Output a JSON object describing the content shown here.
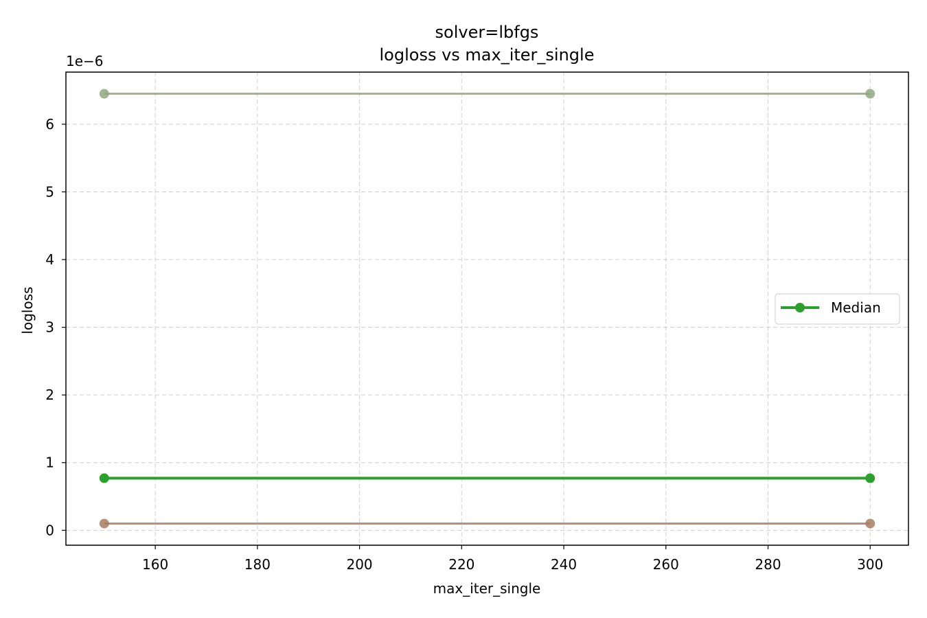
{
  "chart_data": {
    "type": "line",
    "title": "solver=lbfgs",
    "subtitle": "logloss vs max_iter_single",
    "xlabel": "max_iter_single",
    "ylabel": "logloss",
    "y_offset_text": "1e−6",
    "y_scale_factor": 1e-06,
    "xlim": [
      142.5,
      307.5
    ],
    "ylim": [
      -0.22,
      6.77
    ],
    "x_ticks": [
      160,
      180,
      200,
      220,
      240,
      260,
      280,
      300
    ],
    "y_ticks": [
      0,
      1,
      2,
      3,
      4,
      5,
      6
    ],
    "grid": true,
    "legend_position": "center-right",
    "series": [
      {
        "name": "",
        "color": "#8fa87e",
        "x": [
          150,
          300
        ],
        "values": [
          6.45,
          6.45
        ]
      },
      {
        "name": "",
        "color": "#a87e62",
        "x": [
          150,
          300
        ],
        "values": [
          0.1,
          0.1
        ]
      },
      {
        "name": "Median",
        "color": "#2ca02c",
        "x": [
          150,
          300
        ],
        "values": [
          0.77,
          0.77
        ]
      }
    ]
  }
}
